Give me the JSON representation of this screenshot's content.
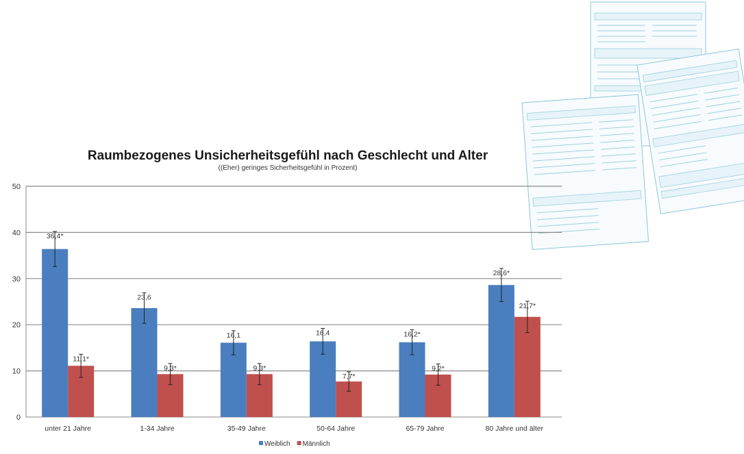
{
  "chart_data": {
    "type": "bar",
    "title": "Raumbezogenes Unsicherheitsgefühl nach Geschlecht und Alter",
    "subtitle": "((Eher) geringes Sicherheitsgefühl in Prozent)",
    "xlabel": "",
    "ylabel": "",
    "ylim": [
      0,
      50
    ],
    "yticks": [
      0,
      10,
      20,
      30,
      40,
      50
    ],
    "grid": true,
    "legend_position": "bottom",
    "categories": [
      "unter 21 Jahre",
      "1-34 Jahre",
      "35-49 Jahre",
      "50-64 Jahre",
      "65-79 Jahre",
      "80 Jahre und älter"
    ],
    "series": [
      {
        "name": "Weiblich",
        "color": "#4a7ebf",
        "values": [
          36.4,
          23.6,
          16.1,
          16.4,
          16.2,
          28.6
        ],
        "labels": [
          "36,4*",
          "23,6",
          "16,1",
          "16,4",
          "16,2*",
          "28,6*"
        ],
        "error": [
          3.8,
          3.3,
          2.6,
          2.8,
          2.7,
          3.6
        ]
      },
      {
        "name": "Männlich",
        "color": "#c0504d",
        "values": [
          11.1,
          9.3,
          9.3,
          7.7,
          9.2,
          21.7
        ],
        "labels": [
          "11,1*",
          "9,3*",
          "9,3*",
          "7,7*",
          "9,2*",
          "21,7*"
        ],
        "error": [
          2.5,
          2.3,
          2.3,
          2.1,
          2.3,
          3.4
        ]
      }
    ]
  }
}
